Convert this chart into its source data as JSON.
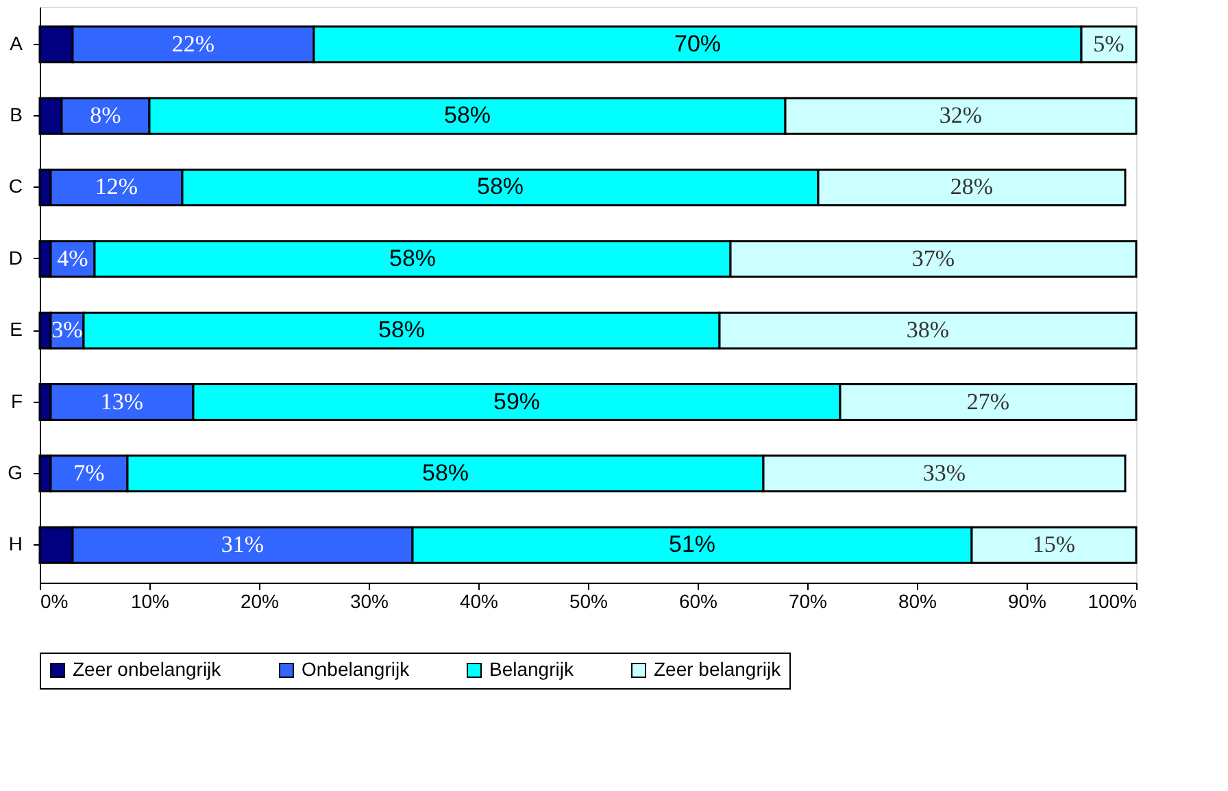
{
  "chart_data": {
    "type": "bar",
    "orientation": "horizontal",
    "stacked": true,
    "categories": [
      "A",
      "B",
      "C",
      "D",
      "E",
      "F",
      "G",
      "H"
    ],
    "series": [
      {
        "name": "Zeer onbelangrijk",
        "color": "#000080",
        "values": [
          3,
          2,
          1,
          1,
          1,
          1,
          1,
          3
        ],
        "value_labels": [
          null,
          null,
          null,
          null,
          null,
          null,
          null,
          null
        ]
      },
      {
        "name": "Onbelangrijk",
        "color": "#3366ff",
        "values": [
          22,
          8,
          12,
          4,
          3,
          13,
          7,
          31
        ],
        "value_labels": [
          "22%",
          "8%",
          "12%",
          "4%",
          "3%",
          "13%",
          "7%",
          "31%"
        ]
      },
      {
        "name": "Belangrijk",
        "color": "#00ffff",
        "values": [
          70,
          58,
          58,
          58,
          58,
          59,
          58,
          51
        ],
        "value_labels": [
          "70%",
          "58%",
          "58%",
          "58%",
          "58%",
          "59%",
          "58%",
          "51%"
        ]
      },
      {
        "name": "Zeer belangrijk",
        "color": "#ccffff",
        "values": [
          5,
          32,
          28,
          37,
          38,
          27,
          33,
          15
        ],
        "value_labels": [
          "5%",
          "32%",
          "28%",
          "37%",
          "38%",
          "27%",
          "33%",
          "15%"
        ]
      }
    ],
    "xlim": [
      0,
      100
    ],
    "xticks": [
      {
        "value": 0,
        "label": "0%"
      },
      {
        "value": 10,
        "label": "10%"
      },
      {
        "value": 20,
        "label": "20%"
      },
      {
        "value": 30,
        "label": "30%"
      },
      {
        "value": 40,
        "label": "40%"
      },
      {
        "value": 50,
        "label": "50%"
      },
      {
        "value": 60,
        "label": "60%"
      },
      {
        "value": 70,
        "label": "70%"
      },
      {
        "value": 80,
        "label": "80%"
      },
      {
        "value": 90,
        "label": "90%"
      },
      {
        "value": 100,
        "label": "100%"
      }
    ],
    "grid": false,
    "legend": "bottom"
  }
}
